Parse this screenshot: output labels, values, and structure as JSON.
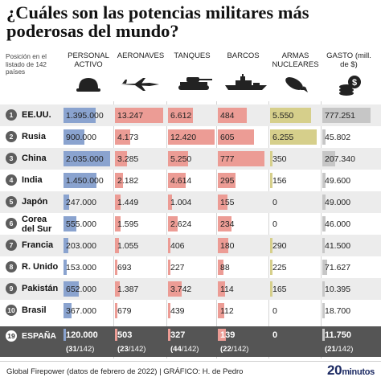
{
  "title": "¿Cuáles son las potencias militares más poderosas del mundo?",
  "position_label": "Posición en el listado de 142 países",
  "columns": [
    {
      "label": "PERSONAL ACTIVO",
      "icon": "helmet-icon",
      "color": "#8aa3cf"
    },
    {
      "label": "AERONAVES",
      "icon": "jet-icon",
      "color": "#ec9c95"
    },
    {
      "label": "TANQUES",
      "icon": "tank-icon",
      "color": "#ec9c95"
    },
    {
      "label": "BARCOS",
      "icon": "ship-icon",
      "color": "#ec9c95"
    },
    {
      "label": "ARMAS NUCLEARES",
      "icon": "bomb-icon",
      "color": "#d6cf8b"
    },
    {
      "label": "GASTO (mill. de $)",
      "icon": "coins-icon",
      "color": "#c6c6c6"
    }
  ],
  "chart_data": {
    "type": "table",
    "title": "¿Cuáles son las potencias militares más poderosas del mundo?",
    "columns": [
      "Personal activo",
      "Aeronaves",
      "Tanques",
      "Barcos",
      "Armas nucleares",
      "Gasto (mill. de $)"
    ],
    "rows": [
      {
        "rank": "1",
        "country": "EE.UU.",
        "values": [
          "1.395.000",
          "13.247",
          "6.612",
          "484",
          "5.550",
          "777.251"
        ],
        "numbers": [
          1395000,
          13247,
          6612,
          484,
          5550,
          777251
        ]
      },
      {
        "rank": "2",
        "country": "Rusia",
        "values": [
          "900.000",
          "4.173",
          "12.420",
          "605",
          "6.255",
          "45.802"
        ],
        "numbers": [
          900000,
          4173,
          12420,
          605,
          6255,
          45802
        ]
      },
      {
        "rank": "3",
        "country": "China",
        "values": [
          "2.035.000",
          "3.285",
          "5.250",
          "777",
          "350",
          "207.340"
        ],
        "numbers": [
          2035000,
          3285,
          5250,
          777,
          350,
          207340
        ]
      },
      {
        "rank": "4",
        "country": "India",
        "values": [
          "1.450.000",
          "2.182",
          "4.614",
          "295",
          "156",
          "49.600"
        ],
        "numbers": [
          1450000,
          2182,
          4614,
          295,
          156,
          49600
        ]
      },
      {
        "rank": "5",
        "country": "Japón",
        "values": [
          "247.000",
          "1.449",
          "1.004",
          "155",
          "0",
          "49.000"
        ],
        "numbers": [
          247000,
          1449,
          1004,
          155,
          0,
          49000
        ]
      },
      {
        "rank": "6",
        "country": "Corea del Sur",
        "values": [
          "555.000",
          "1.595",
          "2.624",
          "234",
          "0",
          "46.000"
        ],
        "numbers": [
          555000,
          1595,
          2624,
          234,
          0,
          46000
        ]
      },
      {
        "rank": "7",
        "country": "Francia",
        "values": [
          "203.000",
          "1.055",
          "406",
          "180",
          "290",
          "41.500"
        ],
        "numbers": [
          203000,
          1055,
          406,
          180,
          290,
          41500
        ]
      },
      {
        "rank": "8",
        "country": "R. Unido",
        "values": [
          "153.000",
          "693",
          "227",
          "88",
          "225",
          "71.627"
        ],
        "numbers": [
          153000,
          693,
          227,
          88,
          225,
          71627
        ]
      },
      {
        "rank": "9",
        "country": "Pakistán",
        "values": [
          "652.000",
          "1.387",
          "3.742",
          "114",
          "165",
          "10.395"
        ],
        "numbers": [
          652000,
          1387,
          3742,
          114,
          165,
          10395
        ]
      },
      {
        "rank": "10",
        "country": "Brasil",
        "values": [
          "367.000",
          "679",
          "439",
          "112",
          "0",
          "18.700"
        ],
        "numbers": [
          367000,
          679,
          439,
          112,
          0,
          18700
        ]
      }
    ],
    "spain": {
      "rank": "19",
      "country": "ESPAÑA",
      "values": [
        "120.000",
        "503",
        "327",
        "139",
        "0",
        "11.750"
      ],
      "numbers": [
        120000,
        503,
        327,
        139,
        0,
        11750
      ],
      "ranks": [
        [
          "31",
          "/142"
        ],
        [
          "23",
          "/142"
        ],
        [
          "44",
          "/142"
        ],
        [
          "22",
          "/142"
        ],
        null,
        [
          "21",
          "/142"
        ]
      ]
    }
  },
  "footer": {
    "source": "Global Firepower (datos de febrero de 2022)  |  GRÁFICO: H. de Pedro",
    "logo_main": "20",
    "logo_sup": "minutos"
  }
}
